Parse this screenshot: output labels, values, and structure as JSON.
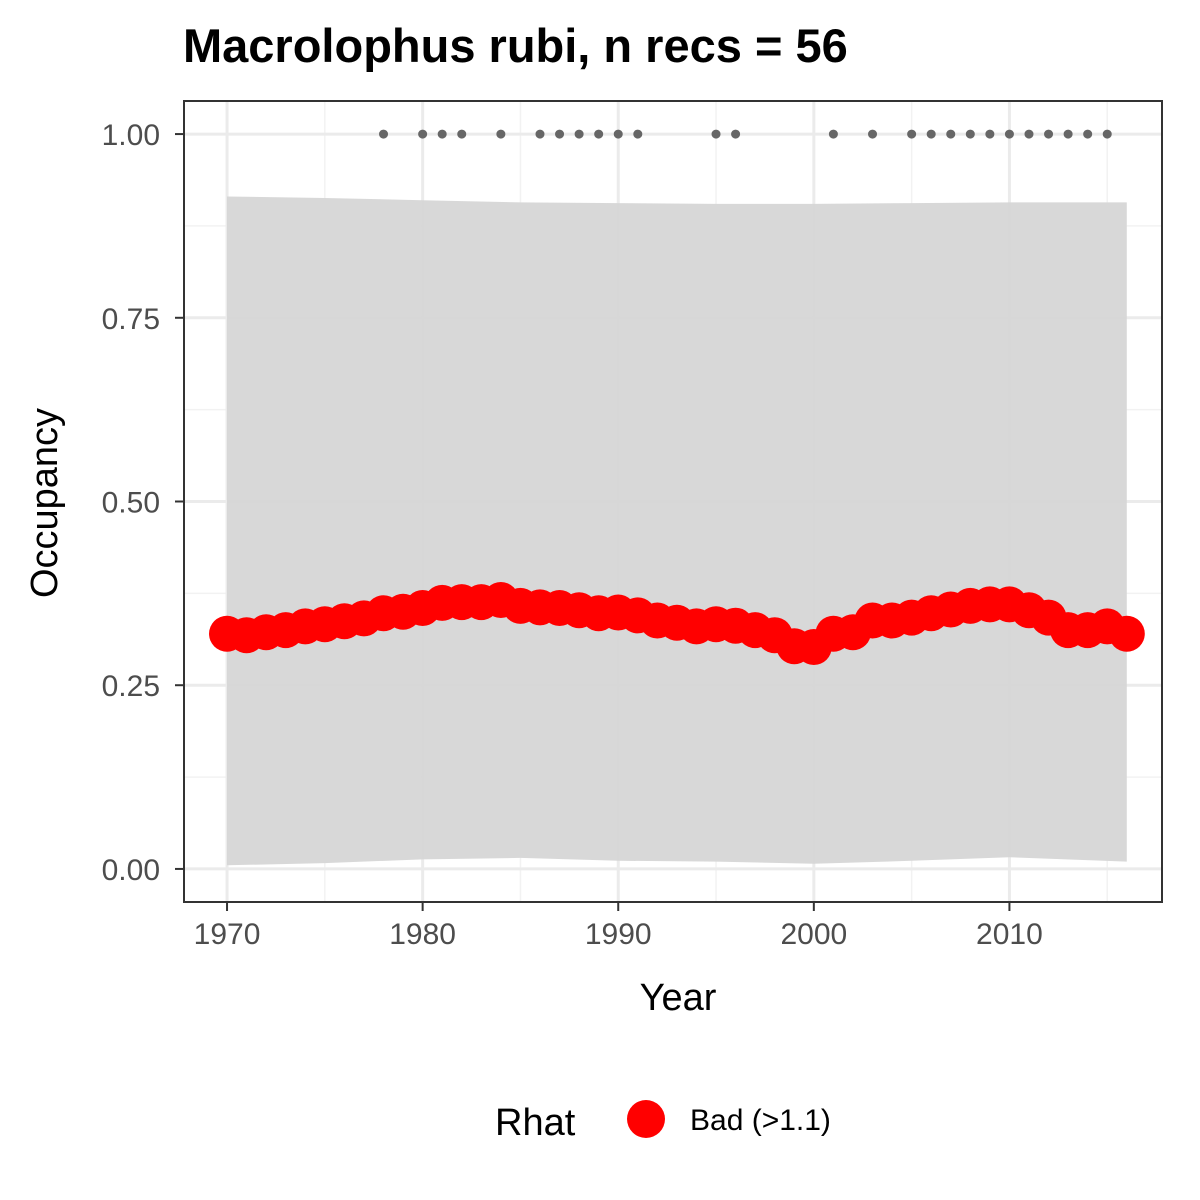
{
  "chart_data": {
    "type": "line",
    "title": "Macrolophus rubi, n recs = 56",
    "xlabel": "Year",
    "ylabel": "Occupancy",
    "xlim": [
      1967.8,
      2017.8
    ],
    "ylim": [
      -0.045,
      1.045
    ],
    "x_ticks": [
      1970,
      1980,
      1990,
      2000,
      2010
    ],
    "x_tick_labels": [
      "1970",
      "1980",
      "1990",
      "2000",
      "2010"
    ],
    "y_ticks": [
      0,
      0.25,
      0.5,
      0.75,
      1.0
    ],
    "y_tick_labels": [
      "0.00",
      "0.25",
      "0.50",
      "0.75",
      "1.00"
    ],
    "grid": true,
    "series": [
      {
        "name": "Occupancy",
        "x": [
          1970,
          1971,
          1972,
          1973,
          1974,
          1975,
          1976,
          1977,
          1978,
          1979,
          1980,
          1981,
          1982,
          1983,
          1984,
          1985,
          1986,
          1987,
          1988,
          1989,
          1990,
          1991,
          1992,
          1993,
          1994,
          1995,
          1996,
          1997,
          1998,
          1999,
          2000,
          2001,
          2002,
          2003,
          2004,
          2005,
          2006,
          2007,
          2008,
          2009,
          2010,
          2011,
          2012,
          2013,
          2014,
          2015,
          2016
        ],
        "y": [
          0.32,
          0.318,
          0.322,
          0.325,
          0.33,
          0.333,
          0.337,
          0.341,
          0.348,
          0.35,
          0.355,
          0.362,
          0.363,
          0.363,
          0.366,
          0.358,
          0.356,
          0.355,
          0.352,
          0.348,
          0.349,
          0.345,
          0.338,
          0.335,
          0.33,
          0.333,
          0.331,
          0.325,
          0.318,
          0.303,
          0.302,
          0.32,
          0.322,
          0.338,
          0.338,
          0.342,
          0.348,
          0.353,
          0.358,
          0.36,
          0.36,
          0.352,
          0.342,
          0.325,
          0.325,
          0.33,
          0.32
        ],
        "rhat": "Bad (>1.1)",
        "color": "#ff0000"
      }
    ],
    "ci_band": {
      "x": [
        1970,
        1975,
        1980,
        1985,
        1990,
        1995,
        2000,
        2005,
        2010,
        2016
      ],
      "lower": [
        0.005,
        0.008,
        0.013,
        0.015,
        0.011,
        0.01,
        0.007,
        0.011,
        0.016,
        0.01
      ],
      "upper": [
        0.915,
        0.913,
        0.91,
        0.907,
        0.906,
        0.905,
        0.905,
        0.906,
        0.907,
        0.907
      ],
      "color": "#d6d6d6"
    },
    "record_years": [
      1978,
      1980,
      1981,
      1982,
      1984,
      1986,
      1987,
      1988,
      1989,
      1990,
      1991,
      1995,
      1996,
      2001,
      2003,
      2005,
      2006,
      2007,
      2008,
      2009,
      2010,
      2011,
      2012,
      2013,
      2014,
      2015
    ],
    "record_value": 1.0,
    "record_color": "#666666",
    "legend": {
      "position": "bottom",
      "title": "Rhat",
      "entries": [
        {
          "label": "Bad (>1.1)",
          "color": "#ff0000"
        }
      ]
    }
  }
}
